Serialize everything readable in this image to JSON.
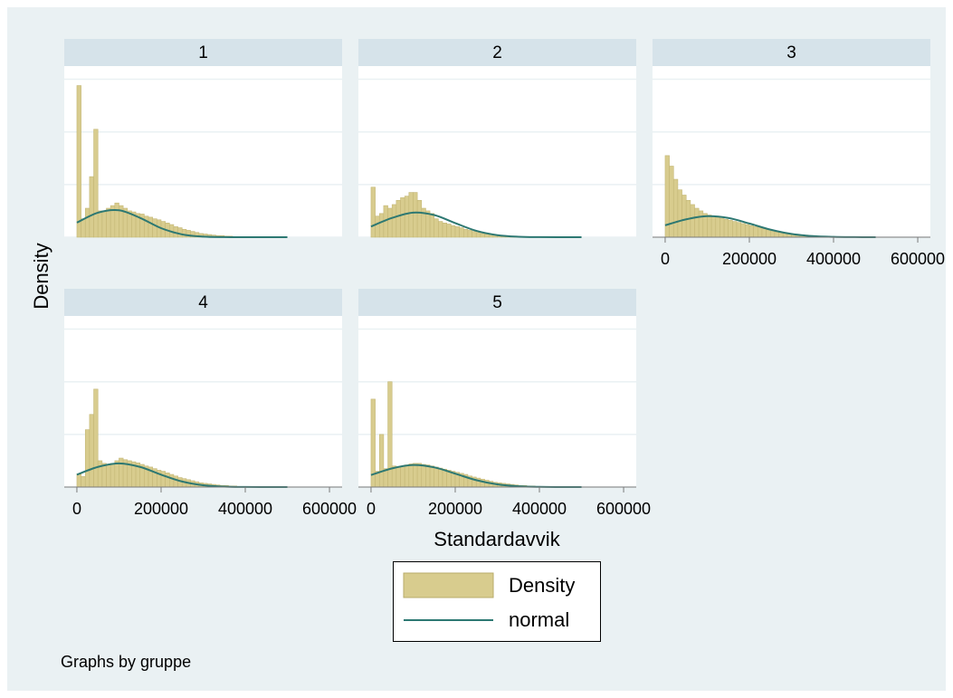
{
  "figure": {
    "x_label": "Standardavvik",
    "y_label": "Density",
    "note": "Graphs by gruppe",
    "legend": [
      {
        "name": "Density",
        "color": "#d8cc8e"
      },
      {
        "name": "normal",
        "color": "#2d7872"
      }
    ]
  },
  "chart_data": [
    {
      "type": "histogram",
      "title": "1",
      "xlim": [
        -30000,
        630000
      ],
      "ylim": [
        0,
        3.25e-05
      ],
      "yticks": [
        0,
        1e-05,
        2e-05,
        3e-05
      ],
      "grid": true,
      "bins": [
        0,
        10000,
        20000,
        30000,
        40000,
        50000,
        60000,
        70000,
        80000,
        90000,
        100000,
        110000,
        120000,
        130000,
        140000,
        150000,
        160000,
        170000,
        180000,
        190000,
        200000,
        210000,
        220000,
        230000,
        240000,
        250000,
        260000,
        270000,
        280000,
        290000,
        300000,
        310000,
        320000,
        330000,
        340000,
        350000,
        360000,
        370000,
        380000,
        390000,
        400000
      ],
      "values": [
        2.88e-05,
        3.5e-06,
        5.5e-06,
        1.15e-05,
        2.05e-05,
        5e-06,
        5e-06,
        5.5e-06,
        6e-06,
        6.5e-06,
        6e-06,
        5.5e-06,
        5e-06,
        4.8e-06,
        4.5e-06,
        4.4e-06,
        4e-06,
        3.8e-06,
        3.5e-06,
        3.3e-06,
        3e-06,
        2.7e-06,
        2.4e-06,
        2e-06,
        1.8e-06,
        1.5e-06,
        1.3e-06,
        1.1e-06,
        9e-07,
        7e-07,
        6e-07,
        5e-07,
        4e-07,
        3e-07,
        3e-07,
        2e-07,
        2e-07,
        1e-07,
        1e-07,
        1e-07
      ],
      "normal": {
        "x": [
          0,
          50000,
          100000,
          150000,
          200000,
          250000,
          300000,
          350000,
          400000,
          450000,
          500000
        ],
        "values": [
          2.77e-06,
          4.66e-06,
          5.11e-06,
          3.67e-06,
          1.72e-06,
          5.3e-07,
          1.06e-07,
          1.4e-08,
          1e-09,
          1e-10,
          0
        ]
      }
    },
    {
      "type": "histogram",
      "title": "2",
      "xlim": [
        -30000,
        630000
      ],
      "ylim": [
        0,
        3.25e-05
      ],
      "yticks": [
        0,
        1e-05,
        2e-05,
        3e-05
      ],
      "grid": true,
      "bins": [
        0,
        10000,
        20000,
        30000,
        40000,
        50000,
        60000,
        70000,
        80000,
        90000,
        100000,
        110000,
        120000,
        130000,
        140000,
        150000,
        160000,
        170000,
        180000,
        190000,
        200000,
        210000,
        220000,
        230000,
        240000,
        250000,
        260000,
        270000,
        280000,
        290000,
        300000,
        310000,
        320000,
        330000,
        340000,
        350000,
        360000,
        370000,
        380000,
        390000,
        400000
      ],
      "values": [
        9.5e-06,
        4e-06,
        4.5e-06,
        6e-06,
        5.5e-06,
        6.2e-06,
        7e-06,
        7.5e-06,
        7.8e-06,
        8.5e-06,
        8.5e-06,
        7e-06,
        5.5e-06,
        5e-06,
        4.5e-06,
        3.5e-06,
        3e-06,
        2.7e-06,
        2.5e-06,
        2.2e-06,
        2e-06,
        1.8e-06,
        1.5e-06,
        1.3e-06,
        1.1e-06,
        9e-07,
        7e-07,
        6e-07,
        5e-07,
        4e-07,
        3e-07,
        3e-07,
        2e-07,
        2e-07,
        1e-07,
        1e-07,
        1e-07,
        1e-07,
        0,
        0
      ],
      "normal": {
        "x": [
          0,
          50000,
          100000,
          150000,
          200000,
          250000,
          300000,
          350000,
          400000,
          450000,
          500000
        ],
        "values": [
          2.03e-06,
          3.66e-06,
          4.67e-06,
          4.21e-06,
          2.68e-06,
          1.21e-06,
          3.9e-07,
          8.8e-08,
          1.4e-08,
          1.6e-09,
          1e-10
        ]
      }
    },
    {
      "type": "histogram",
      "title": "3",
      "xlim": [
        -30000,
        630000
      ],
      "ylim": [
        0,
        3.25e-05
      ],
      "yticks": [
        0,
        1e-05,
        2e-05,
        3e-05
      ],
      "grid": true,
      "xticks": [
        0,
        200000,
        400000,
        600000
      ],
      "bins": [
        0,
        10000,
        20000,
        30000,
        40000,
        50000,
        60000,
        70000,
        80000,
        90000,
        100000,
        110000,
        120000,
        130000,
        140000,
        150000,
        160000,
        170000,
        180000,
        190000,
        200000,
        210000,
        220000,
        230000,
        240000,
        250000,
        260000,
        270000,
        280000,
        290000,
        300000,
        310000,
        320000,
        330000,
        340000,
        350000,
        360000,
        370000,
        380000,
        390000,
        400000
      ],
      "values": [
        1.55e-05,
        1.35e-05,
        1.1e-05,
        9e-06,
        8e-06,
        7e-06,
        6.2e-06,
        5.5e-06,
        5e-06,
        4.5e-06,
        4.2e-06,
        4e-06,
        3.8e-06,
        3.6e-06,
        3.4e-06,
        3.2e-06,
        3e-06,
        2.8e-06,
        2.6e-06,
        2.4e-06,
        2.2e-06,
        2e-06,
        1.8e-06,
        1.6e-06,
        1.4e-06,
        1.2e-06,
        1e-06,
        9e-07,
        8e-07,
        7e-07,
        6e-07,
        5e-07,
        4e-07,
        4e-07,
        3e-07,
        3e-07,
        2e-07,
        2e-07,
        2e-07,
        1e-07
      ],
      "normal": {
        "x": [
          0,
          50000,
          100000,
          150000,
          200000,
          250000,
          300000,
          350000,
          400000,
          450000,
          500000
        ],
        "values": [
          2.26e-06,
          3.4e-06,
          3.99e-06,
          3.65e-06,
          2.6e-06,
          1.44e-06,
          6.2e-07,
          2.1e-07,
          5.5e-08,
          1.1e-08,
          2e-09
        ]
      }
    },
    {
      "type": "histogram",
      "title": "4",
      "xlim": [
        -30000,
        630000
      ],
      "ylim": [
        0,
        3.25e-05
      ],
      "yticks": [
        0,
        1e-05,
        2e-05,
        3e-05
      ],
      "grid": true,
      "xticks": [
        0,
        200000,
        400000,
        600000
      ],
      "bins": [
        0,
        10000,
        20000,
        30000,
        40000,
        50000,
        60000,
        70000,
        80000,
        90000,
        100000,
        110000,
        120000,
        130000,
        140000,
        150000,
        160000,
        170000,
        180000,
        190000,
        200000,
        210000,
        220000,
        230000,
        240000,
        250000,
        260000,
        270000,
        280000,
        290000,
        300000,
        310000,
        320000,
        330000,
        340000,
        350000,
        360000,
        370000,
        380000,
        390000,
        400000
      ],
      "values": [
        2.5e-06,
        2e-06,
        1.09e-05,
        1.38e-05,
        1.86e-05,
        5e-06,
        4.5e-06,
        4.2e-06,
        4.5e-06,
        5e-06,
        5.5e-06,
        5.2e-06,
        5e-06,
        4.8e-06,
        4.6e-06,
        4.3e-06,
        4e-06,
        3.8e-06,
        3.5e-06,
        3.2e-06,
        3e-06,
        2.7e-06,
        2.4e-06,
        2.1e-06,
        1.8e-06,
        1.6e-06,
        1.4e-06,
        1.2e-06,
        1e-06,
        8e-07,
        7e-07,
        6e-07,
        5e-07,
        4e-07,
        3e-07,
        3e-07,
        2e-07,
        2e-07,
        1e-07,
        1e-07
      ],
      "normal": {
        "x": [
          0,
          50000,
          100000,
          150000,
          200000,
          250000,
          300000,
          350000,
          400000,
          450000,
          500000
        ],
        "values": [
          2.36e-06,
          3.83e-06,
          4.5e-06,
          3.83e-06,
          2.36e-06,
          1.05e-06,
          3.4e-07,
          8e-08,
          1.3e-08,
          1.7e-09,
          1e-10
        ]
      }
    },
    {
      "type": "histogram",
      "title": "5",
      "xlim": [
        -30000,
        630000
      ],
      "ylim": [
        0,
        3.25e-05
      ],
      "yticks": [
        0,
        1e-05,
        2e-05,
        3e-05
      ],
      "grid": true,
      "xticks": [
        0,
        200000,
        400000,
        600000
      ],
      "bins": [
        0,
        10000,
        20000,
        30000,
        40000,
        50000,
        60000,
        70000,
        80000,
        90000,
        100000,
        110000,
        120000,
        130000,
        140000,
        150000,
        160000,
        170000,
        180000,
        190000,
        200000,
        210000,
        220000,
        230000,
        240000,
        250000,
        260000,
        270000,
        280000,
        290000,
        300000,
        310000,
        320000,
        330000,
        340000,
        350000,
        360000,
        370000,
        380000,
        390000,
        400000
      ],
      "values": [
        1.67e-05,
        3e-06,
        1e-05,
        3.5e-06,
        2e-05,
        4e-06,
        3.8e-06,
        4e-06,
        4.2e-06,
        4.4e-06,
        4.5e-06,
        4.5e-06,
        4.3e-06,
        4.2e-06,
        4e-06,
        3.8e-06,
        3.6e-06,
        3.4e-06,
        3.2e-06,
        3e-06,
        2.8e-06,
        2.6e-06,
        2.4e-06,
        2.1e-06,
        1.9e-06,
        1.7e-06,
        1.5e-06,
        1.3e-06,
        1.1e-06,
        9e-07,
        8e-07,
        7e-07,
        6e-07,
        5e-07,
        4e-07,
        3e-07,
        3e-07,
        2e-07,
        2e-07,
        1e-07
      ],
      "normal": {
        "x": [
          0,
          50000,
          100000,
          150000,
          200000,
          250000,
          300000,
          350000,
          400000,
          450000,
          500000
        ],
        "values": [
          2.28e-06,
          3.55e-06,
          4.19e-06,
          3.75e-06,
          2.55e-06,
          1.31e-06,
          5.1e-07,
          1.5e-07,
          3.4e-08,
          6e-09,
          8e-10
        ]
      }
    }
  ]
}
